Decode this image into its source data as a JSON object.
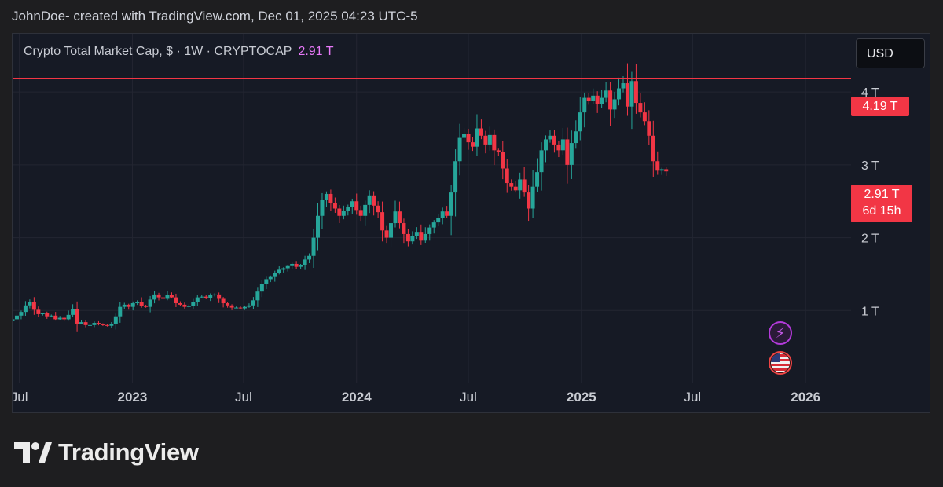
{
  "caption": "JohnDoe- created with TradingView.com, Dec 01, 2025 04:23 UTC-5",
  "legend": {
    "title": "Crypto Total Market Cap, $ · 1W · CRYPTOCAP",
    "last": "2.91 T"
  },
  "currency_button": "USD",
  "brand": "TradingView",
  "price_tags": {
    "high": "4.19 T",
    "last": "2.91 T",
    "countdown": "6d 15h"
  },
  "events": [
    "lightning-icon",
    "us-flag-icon"
  ],
  "colors": {
    "up": "#26a69a",
    "down": "#f23645",
    "background": "#161a25",
    "grid": "#232632",
    "high_line": "#f23645"
  },
  "chart_data": {
    "type": "candlestick",
    "interval": "1W",
    "unit": "T USD",
    "ylim": [
      0,
      4.8
    ],
    "xlim": [
      "2022-06-20",
      "2026-03-16"
    ],
    "y_ticks": [
      {
        "value": 1,
        "label": "1 T"
      },
      {
        "value": 2,
        "label": "2 T"
      },
      {
        "value": 3,
        "label": "3 T"
      },
      {
        "value": 4,
        "label": "4 T"
      }
    ],
    "x_ticks": [
      {
        "date": "2022-07-01",
        "label": "Jul",
        "bold": false
      },
      {
        "date": "2023-01-01",
        "label": "2023",
        "bold": true
      },
      {
        "date": "2023-07-01",
        "label": "Jul",
        "bold": false
      },
      {
        "date": "2024-01-01",
        "label": "2024",
        "bold": true
      },
      {
        "date": "2024-07-01",
        "label": "Jul",
        "bold": false
      },
      {
        "date": "2025-01-01",
        "label": "2025",
        "bold": true
      },
      {
        "date": "2025-07-01",
        "label": "Jul",
        "bold": false
      },
      {
        "date": "2026-01-01",
        "label": "2026",
        "bold": true
      }
    ],
    "horizontal_line": {
      "value": 4.19,
      "label": "4.19 T"
    },
    "first_candle": "2022-06-20",
    "closes": [
      0.88,
      0.93,
      0.98,
      1.07,
      1.12,
      1.01,
      0.95,
      0.96,
      0.92,
      0.93,
      0.88,
      0.9,
      0.88,
      0.94,
      1.02,
      0.82,
      0.84,
      0.8,
      0.8,
      0.83,
      0.81,
      0.8,
      0.79,
      0.82,
      0.92,
      1.05,
      1.08,
      1.05,
      1.1,
      1.12,
      1.06,
      1.05,
      1.15,
      1.22,
      1.18,
      1.16,
      1.21,
      1.18,
      1.1,
      1.08,
      1.05,
      1.06,
      1.12,
      1.18,
      1.19,
      1.17,
      1.21,
      1.22,
      1.16,
      1.1,
      1.07,
      1.04,
      1.04,
      1.03,
      1.05,
      1.07,
      1.14,
      1.26,
      1.36,
      1.43,
      1.46,
      1.52,
      1.56,
      1.58,
      1.61,
      1.64,
      1.6,
      1.62,
      1.7,
      1.75,
      2.0,
      2.3,
      2.52,
      2.6,
      2.48,
      2.4,
      2.3,
      2.37,
      2.42,
      2.5,
      2.38,
      2.3,
      2.45,
      2.58,
      2.44,
      2.35,
      2.1,
      2.0,
      2.2,
      2.36,
      2.2,
      2.05,
      1.95,
      2.02,
      2.08,
      1.96,
      2.05,
      2.14,
      2.21,
      2.27,
      2.36,
      2.3,
      2.62,
      3.05,
      3.37,
      3.42,
      3.31,
      3.25,
      3.5,
      3.4,
      3.28,
      3.41,
      3.2,
      3.18,
      2.95,
      2.75,
      2.7,
      2.65,
      2.8,
      2.62,
      2.4,
      2.7,
      2.9,
      3.2,
      3.35,
      3.4,
      3.28,
      3.2,
      3.35,
      3.0,
      3.3,
      3.46,
      3.72,
      3.92,
      3.88,
      3.95,
      3.84,
      3.92,
      4.02,
      3.76,
      3.9,
      4.05,
      4.12,
      3.8,
      4.15,
      3.85,
      3.72,
      3.6,
      3.4,
      3.05,
      2.92,
      2.94,
      2.91
    ],
    "open_interval_countdown": "6d 15h"
  }
}
